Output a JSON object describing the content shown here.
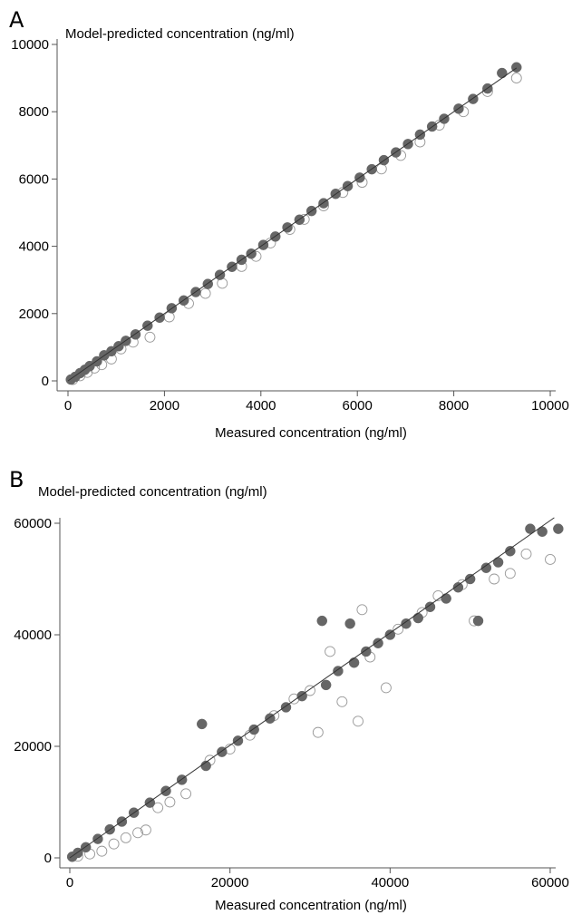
{
  "chart_data": [
    {
      "type": "scatter",
      "panel": "A",
      "ylabel": "Model-predicted concentration (ng/ml)",
      "xlabel": "Measured concentration (ng/ml)",
      "xlim": [
        0,
        10000
      ],
      "ylim": [
        0,
        10000
      ],
      "x_ticks": [
        0,
        2000,
        4000,
        6000,
        8000,
        10000
      ],
      "y_ticks": [
        0,
        2000,
        4000,
        6000,
        8000,
        10000
      ],
      "grid": false,
      "legend": "none",
      "identity_line": {
        "from": [
          0,
          0
        ],
        "to": [
          9300,
          9300
        ]
      },
      "series": [
        {
          "marker": "filled-circle",
          "color": "#666666",
          "points": [
            [
              60,
              40
            ],
            [
              150,
              120
            ],
            [
              250,
              230
            ],
            [
              350,
              330
            ],
            [
              450,
              440
            ],
            [
              600,
              580
            ],
            [
              750,
              760
            ],
            [
              900,
              880
            ],
            [
              1050,
              1030
            ],
            [
              1200,
              1190
            ],
            [
              1400,
              1380
            ],
            [
              1650,
              1640
            ],
            [
              1900,
              1880
            ],
            [
              2150,
              2160
            ],
            [
              2400,
              2390
            ],
            [
              2650,
              2640
            ],
            [
              2900,
              2880
            ],
            [
              3150,
              3150
            ],
            [
              3400,
              3390
            ],
            [
              3600,
              3600
            ],
            [
              3800,
              3780
            ],
            [
              4050,
              4040
            ],
            [
              4300,
              4290
            ],
            [
              4550,
              4560
            ],
            [
              4800,
              4790
            ],
            [
              5050,
              5050
            ],
            [
              5300,
              5280
            ],
            [
              5550,
              5560
            ],
            [
              5800,
              5790
            ],
            [
              6050,
              6040
            ],
            [
              6300,
              6290
            ],
            [
              6550,
              6560
            ],
            [
              6800,
              6790
            ],
            [
              7050,
              7040
            ],
            [
              7300,
              7320
            ],
            [
              7550,
              7560
            ],
            [
              7800,
              7790
            ],
            [
              8100,
              8090
            ],
            [
              8400,
              8380
            ],
            [
              8700,
              8690
            ],
            [
              9000,
              9150
            ],
            [
              9300,
              9320
            ]
          ]
        },
        {
          "marker": "open-circle",
          "color": "#999999",
          "points": [
            [
              100,
              40
            ],
            [
              250,
              150
            ],
            [
              400,
              250
            ],
            [
              550,
              380
            ],
            [
              700,
              480
            ],
            [
              900,
              650
            ],
            [
              1100,
              950
            ],
            [
              1350,
              1150
            ],
            [
              1700,
              1300
            ],
            [
              2100,
              1900
            ],
            [
              2500,
              2300
            ],
            [
              2850,
              2600
            ],
            [
              3200,
              2900
            ],
            [
              3600,
              3400
            ],
            [
              3900,
              3700
            ],
            [
              4200,
              4100
            ],
            [
              4600,
              4500
            ],
            [
              4900,
              4800
            ],
            [
              5300,
              5200
            ],
            [
              5700,
              5600
            ],
            [
              6100,
              5900
            ],
            [
              6500,
              6300
            ],
            [
              6900,
              6700
            ],
            [
              7300,
              7100
            ],
            [
              7700,
              7600
            ],
            [
              8200,
              8000
            ],
            [
              8700,
              8600
            ],
            [
              9300,
              9000
            ]
          ]
        }
      ]
    },
    {
      "type": "scatter",
      "panel": "B",
      "ylabel": "Model-predicted concentration (ng/ml)",
      "xlabel": "Measured concentration (ng/ml)",
      "xlim": [
        0,
        60000
      ],
      "ylim": [
        0,
        60000
      ],
      "x_ticks": [
        0,
        20000,
        40000,
        60000
      ],
      "y_ticks": [
        0,
        20000,
        40000,
        60000
      ],
      "grid": false,
      "legend": "none",
      "identity_line": {
        "from": [
          0,
          0
        ],
        "to": [
          60500,
          61000
        ]
      },
      "series": [
        {
          "marker": "filled-circle",
          "color": "#666666",
          "points": [
            [
              300,
              200
            ],
            [
              1000,
              900
            ],
            [
              2000,
              1900
            ],
            [
              3500,
              3400
            ],
            [
              5000,
              5100
            ],
            [
              6500,
              6500
            ],
            [
              8000,
              8100
            ],
            [
              10000,
              9900
            ],
            [
              12000,
              12000
            ],
            [
              14000,
              14000
            ],
            [
              16500,
              24000
            ],
            [
              17000,
              16500
            ],
            [
              19000,
              19000
            ],
            [
              21000,
              21000
            ],
            [
              23000,
              23000
            ],
            [
              25000,
              25000
            ],
            [
              27000,
              27000
            ],
            [
              29000,
              29000
            ],
            [
              31500,
              42500
            ],
            [
              32000,
              31000
            ],
            [
              33500,
              33500
            ],
            [
              35000,
              42000
            ],
            [
              35500,
              35000
            ],
            [
              37000,
              37000
            ],
            [
              38500,
              38500
            ],
            [
              40000,
              40000
            ],
            [
              42000,
              42000
            ],
            [
              43500,
              43000
            ],
            [
              45000,
              45000
            ],
            [
              47000,
              46500
            ],
            [
              48500,
              48500
            ],
            [
              50000,
              50000
            ],
            [
              51000,
              42500
            ],
            [
              52000,
              52000
            ],
            [
              53500,
              53000
            ],
            [
              55000,
              55000
            ],
            [
              57500,
              59000
            ],
            [
              59000,
              58500
            ],
            [
              61000,
              59000
            ]
          ]
        },
        {
          "marker": "open-circle",
          "color": "#999999",
          "points": [
            [
              1000,
              300
            ],
            [
              2500,
              700
            ],
            [
              4000,
              1200
            ],
            [
              5500,
              2500
            ],
            [
              7000,
              3600
            ],
            [
              8500,
              4500
            ],
            [
              9500,
              5000
            ],
            [
              11000,
              9000
            ],
            [
              12500,
              10000
            ],
            [
              14500,
              11500
            ],
            [
              17500,
              17500
            ],
            [
              20000,
              19500
            ],
            [
              22500,
              22000
            ],
            [
              25500,
              25500
            ],
            [
              28000,
              28500
            ],
            [
              30000,
              30000
            ],
            [
              31000,
              22500
            ],
            [
              32500,
              37000
            ],
            [
              34000,
              28000
            ],
            [
              36000,
              24500
            ],
            [
              36500,
              44500
            ],
            [
              37500,
              36000
            ],
            [
              39500,
              30500
            ],
            [
              41000,
              41000
            ],
            [
              44000,
              44000
            ],
            [
              46000,
              47000
            ],
            [
              49000,
              49000
            ],
            [
              50500,
              42500
            ],
            [
              53000,
              50000
            ],
            [
              55000,
              51000
            ],
            [
              57000,
              54500
            ],
            [
              60000,
              53500
            ]
          ]
        }
      ]
    }
  ]
}
